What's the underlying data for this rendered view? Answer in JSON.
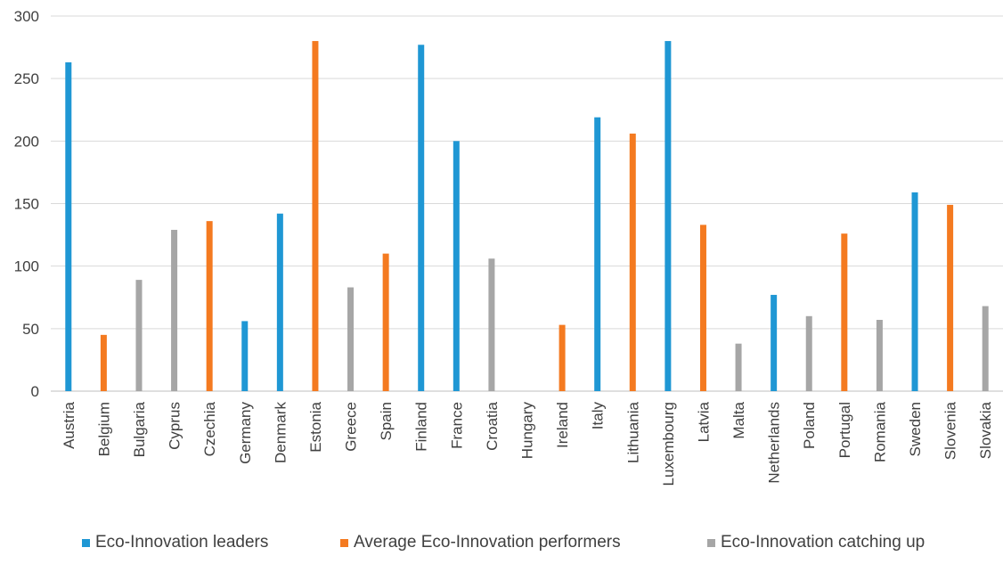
{
  "chart_data": {
    "type": "bar",
    "categories": [
      "Austria",
      "Belgium",
      "Bulgaria",
      "Cyprus",
      "Czechia",
      "Germany",
      "Denmark",
      "Estonia",
      "Greece",
      "Spain",
      "Finland",
      "France",
      "Croatia",
      "Hungary",
      "Ireland",
      "Italy",
      "Lithuania",
      "Luxembourg",
      "Latvia",
      "Malta",
      "Netherlands",
      "Poland",
      "Portugal",
      "Romania",
      "Sweden",
      "Slovenia",
      "Slovakia"
    ],
    "series": [
      {
        "name": "Eco-Innovation leaders",
        "color": "#1F97D4",
        "values": [
          263,
          null,
          null,
          null,
          null,
          56,
          142,
          null,
          null,
          null,
          277,
          200,
          null,
          null,
          null,
          219,
          null,
          280,
          null,
          null,
          77,
          null,
          null,
          null,
          159,
          null,
          null
        ]
      },
      {
        "name": "Average Eco-Innovation performers",
        "color": "#F47A20",
        "values": [
          null,
          45,
          null,
          null,
          136,
          null,
          null,
          280,
          null,
          110,
          null,
          null,
          null,
          null,
          53,
          null,
          206,
          null,
          133,
          null,
          null,
          null,
          126,
          null,
          null,
          149,
          null
        ]
      },
      {
        "name": "Eco-Innovation catching up",
        "color": "#A6A6A6",
        "values": [
          null,
          null,
          89,
          129,
          null,
          null,
          null,
          null,
          83,
          null,
          null,
          null,
          106,
          null,
          null,
          null,
          null,
          null,
          null,
          38,
          null,
          60,
          null,
          57,
          null,
          null,
          68
        ]
      }
    ],
    "yticks": [
      0,
      50,
      100,
      150,
      200,
      250,
      300
    ],
    "ylim": [
      0,
      300
    ],
    "xlabel": "",
    "ylabel": "",
    "grid": true,
    "legend_position": "bottom"
  }
}
